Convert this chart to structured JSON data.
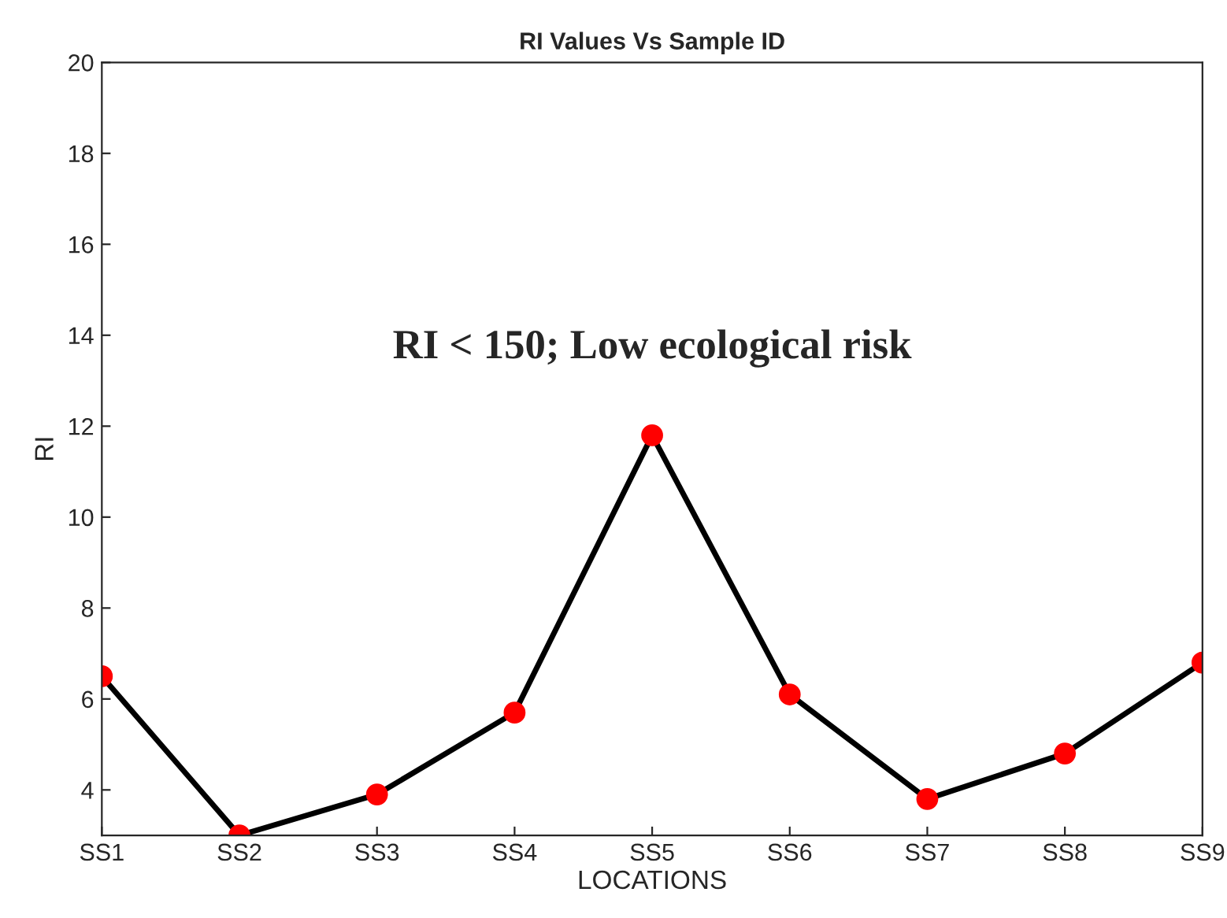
{
  "chart_data": {
    "type": "line",
    "title": "RI Values Vs Sample ID",
    "xlabel": "LOCATIONS",
    "ylabel": "RI",
    "categories": [
      "SS1",
      "SS2",
      "SS3",
      "SS4",
      "SS5",
      "SS6",
      "SS7",
      "SS8",
      "SS9"
    ],
    "series": [
      {
        "color": "#000000",
        "values": [
          6.5,
          3.0,
          3.9,
          5.7,
          11.8,
          6.1,
          3.8,
          4.8,
          6.8
        ]
      }
    ],
    "ylim": [
      3,
      20
    ],
    "yticks": [
      4,
      6,
      8,
      10,
      12,
      14,
      16,
      18,
      20
    ],
    "marker": "circle",
    "line_style": "solid",
    "grid": false,
    "legend": false,
    "annotations": [
      "RI < 150; Low ecological risk"
    ]
  }
}
